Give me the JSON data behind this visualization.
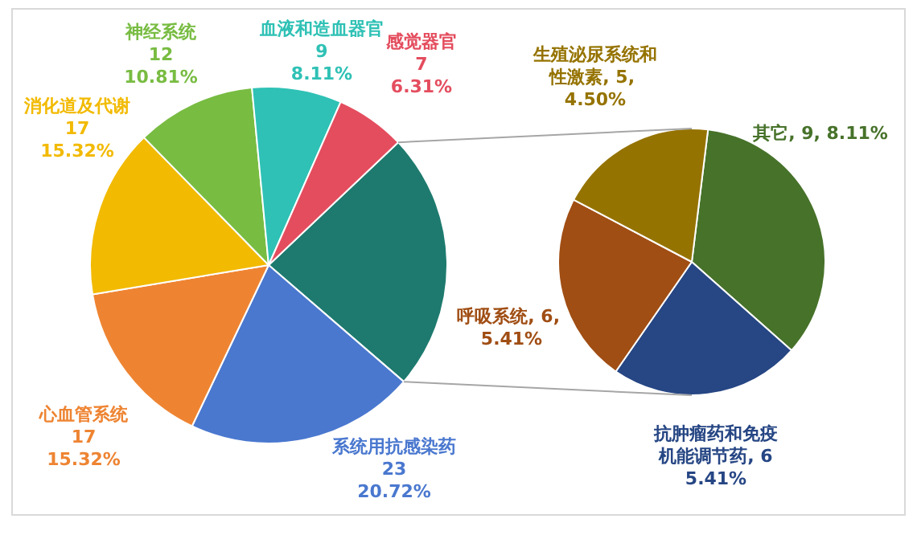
{
  "chart_data": [
    {
      "type": "pie",
      "categories": [
        null,
        "系统用抗感染药",
        "心血管系统",
        "消化道及代谢",
        "神经系统",
        "血液和造血器官",
        "感觉器官"
      ],
      "values": [
        26,
        23,
        17,
        17,
        12,
        9,
        7
      ],
      "colors": [
        "#1e7a6e",
        "#4a78cf",
        "#ee8432",
        "#f2ba00",
        "#78bc42",
        "#2fc1b5",
        "#e44d5e"
      ],
      "value_labels": [
        null,
        "23\n20.72%",
        "17\n15.32%",
        "17\n15.32%",
        "12\n10.81%",
        "9\n8.11%",
        "7\n6.31%"
      ]
    },
    {
      "type": "pie",
      "categories": [
        "其它",
        "抗肿瘤药和免疫机能调节药",
        "呼吸系统",
        "生殖泌尿系统和性激素"
      ],
      "values": [
        9,
        6,
        6,
        5
      ],
      "colors": [
        "#47722a",
        "#264684",
        "#a04e14",
        "#957300"
      ],
      "value_labels": [
        "9, 8.11%",
        "6\n5.41%",
        "6, 5.41%",
        "5, 4.50%"
      ]
    }
  ]
}
